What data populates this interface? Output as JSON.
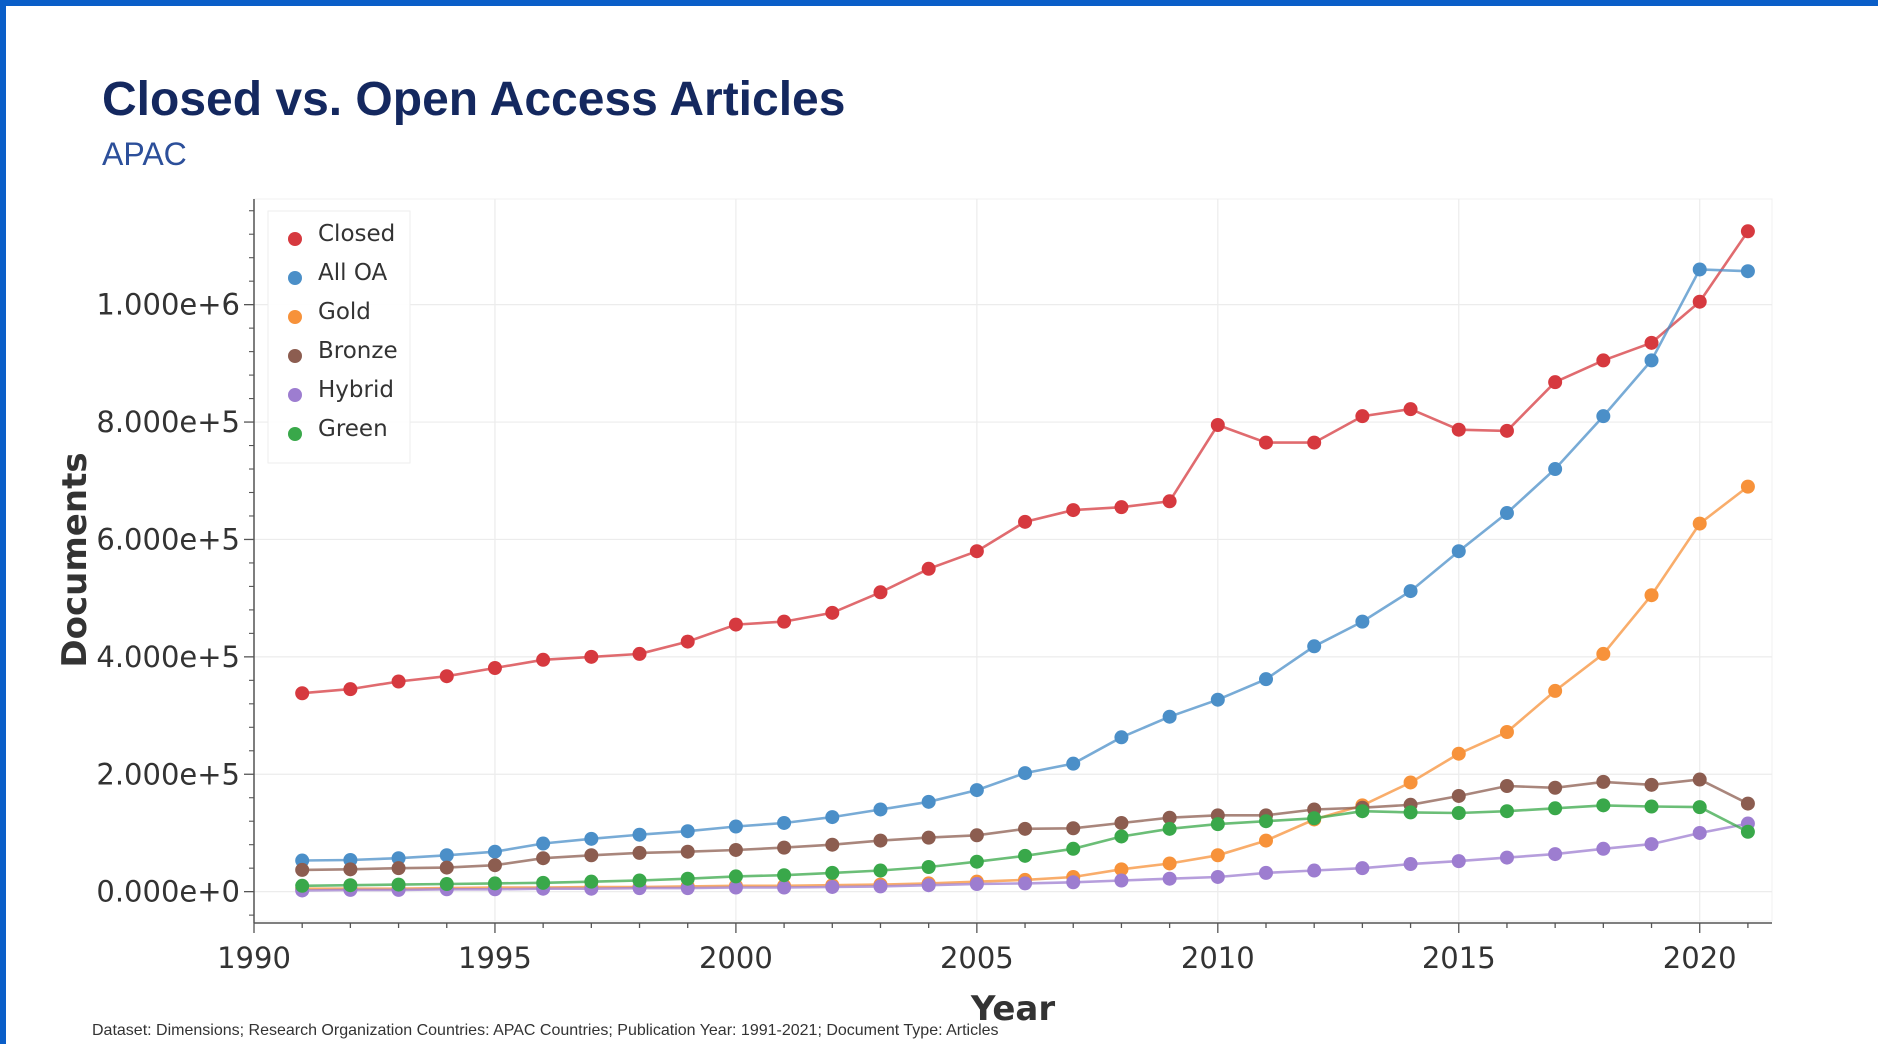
{
  "title": "Closed vs. Open Access Articles",
  "subtitle": "APAC",
  "footnote": "Dataset: Dimensions; Research Organization Countries: APAC Countries; Publication Year: 1991-2021; Document Type: Articles",
  "chart_data": {
    "type": "line",
    "title": "Closed vs. Open Access Articles",
    "subtitle": "APAC",
    "xlabel": "Year",
    "ylabel": "Documents",
    "xlim": [
      1990,
      2021.5
    ],
    "ylim": [
      -50000,
      1180000
    ],
    "xticks": [
      1990,
      1995,
      2000,
      2005,
      2010,
      2015,
      2020
    ],
    "yticks": [
      0,
      200000,
      400000,
      600000,
      800000,
      1000000
    ],
    "ytick_labels": [
      "0.000e+0",
      "2.000e+5",
      "4.000e+5",
      "6.000e+5",
      "8.000e+5",
      "1.000e+6"
    ],
    "grid": true,
    "legend_position": "top-left",
    "x": [
      1991,
      1992,
      1993,
      1994,
      1995,
      1996,
      1997,
      1998,
      1999,
      2000,
      2001,
      2002,
      2003,
      2004,
      2005,
      2006,
      2007,
      2008,
      2009,
      2010,
      2011,
      2012,
      2013,
      2014,
      2015,
      2016,
      2017,
      2018,
      2019,
      2020,
      2021
    ],
    "series": [
      {
        "name": "Closed",
        "color": "#d6393f",
        "values": [
          338000,
          345000,
          358000,
          367000,
          381000,
          395000,
          400000,
          405000,
          426000,
          455000,
          460000,
          475000,
          510000,
          550000,
          580000,
          630000,
          650000,
          655000,
          665000,
          795000,
          765000,
          765000,
          810000,
          822000,
          787000,
          785000,
          868000,
          905000,
          935000,
          1005000,
          1125000
        ]
      },
      {
        "name": "All OA",
        "color": "#4b8fc8",
        "values": [
          53000,
          54000,
          57000,
          62000,
          68000,
          82000,
          90000,
          97000,
          103000,
          111000,
          117000,
          127000,
          140000,
          153000,
          173000,
          202000,
          218000,
          263000,
          298000,
          327000,
          362000,
          418000,
          460000,
          512000,
          580000,
          645000,
          720000,
          810000,
          905000,
          1060000,
          1057000
        ]
      },
      {
        "name": "Gold",
        "color": "#f7923a",
        "values": [
          5000,
          5000,
          5000,
          6000,
          7000,
          7000,
          8000,
          8000,
          9000,
          10000,
          10000,
          11000,
          12000,
          14000,
          17000,
          20000,
          25000,
          38000,
          48000,
          62000,
          87000,
          123000,
          147000,
          186000,
          235000,
          272000,
          342000,
          405000,
          505000,
          627000,
          690000
        ]
      },
      {
        "name": "Bronze",
        "color": "#8c5d50",
        "values": [
          37000,
          38000,
          40000,
          41000,
          45000,
          57000,
          62000,
          66000,
          68000,
          71000,
          75000,
          80000,
          87000,
          92000,
          96000,
          107000,
          108000,
          117000,
          126000,
          130000,
          130000,
          140000,
          143000,
          148000,
          163000,
          180000,
          177000,
          187000,
          182000,
          191000,
          150000
        ]
      },
      {
        "name": "Hybrid",
        "color": "#9d7dd0",
        "values": [
          2000,
          3000,
          3000,
          4000,
          4000,
          5000,
          5000,
          6000,
          6000,
          7000,
          7000,
          8000,
          9000,
          11000,
          13000,
          14000,
          16000,
          19000,
          22000,
          25000,
          32000,
          36000,
          40000,
          47000,
          52000,
          58000,
          64000,
          73000,
          81000,
          100000,
          116000
        ]
      },
      {
        "name": "Green",
        "color": "#39a84a",
        "values": [
          10000,
          11000,
          12000,
          13000,
          14000,
          15000,
          17000,
          19000,
          22000,
          26000,
          28000,
          32000,
          36000,
          42000,
          51000,
          61000,
          73000,
          94000,
          107000,
          115000,
          120000,
          125000,
          137000,
          135000,
          134000,
          137000,
          142000,
          147000,
          145000,
          144000,
          102000
        ]
      }
    ]
  }
}
